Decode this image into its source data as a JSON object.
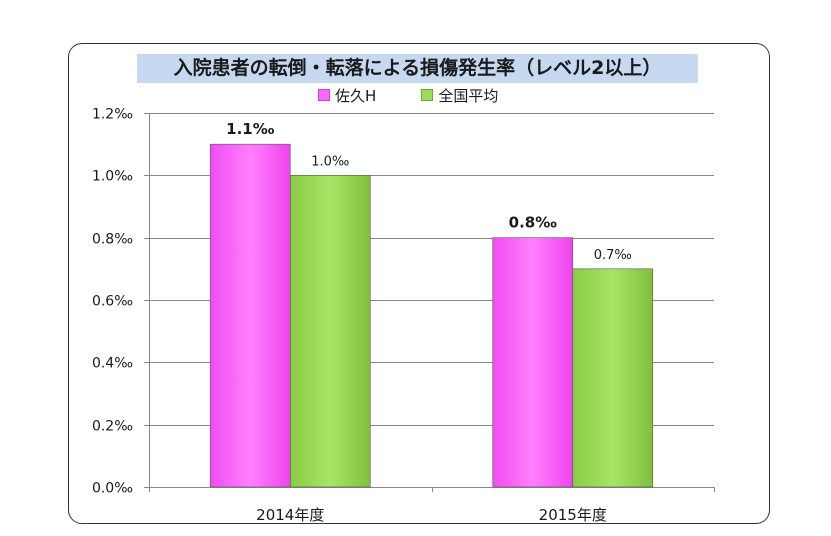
{
  "chart_data": {
    "type": "bar",
    "title": "入院患者の転倒・転落による損傷発生率（レベル2以上）",
    "categories": [
      "2014年度",
      "2015年度"
    ],
    "series": [
      {
        "name": "佐久H",
        "values": [
          1.1,
          0.8
        ],
        "labels": [
          "1.1‰",
          "0.8‰"
        ],
        "color": "#ff66ff",
        "label_bold": true
      },
      {
        "name": "全国平均",
        "values": [
          1.0,
          0.7
        ],
        "labels": [
          "1.0‰",
          "0.7‰"
        ],
        "color": "#99dd55",
        "label_bold": false
      }
    ],
    "yticks": [
      "0.0‰",
      "0.2‰",
      "0.4‰",
      "0.6‰",
      "0.8‰",
      "1.0‰",
      "1.2‰"
    ],
    "ylim": [
      0,
      1.2
    ],
    "grid": true,
    "legend_position": "top-center"
  }
}
